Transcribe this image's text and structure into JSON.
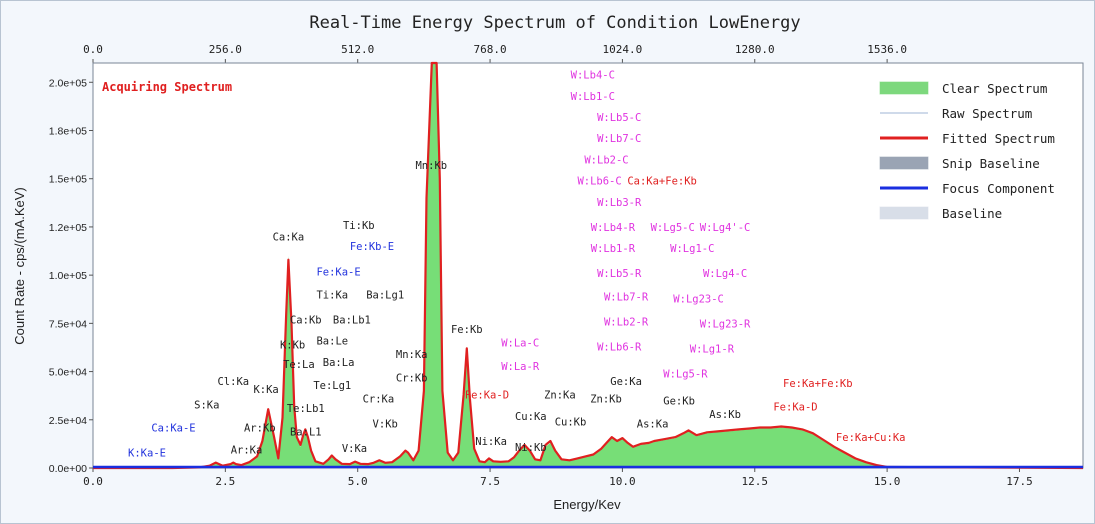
{
  "chart_data": {
    "type": "area",
    "title": "Real-Time Energy Spectrum of Condition LowEnergy",
    "xlabel": "Energy/Kev",
    "ylabel": "Count Rate - cps/(mA.KeV)",
    "xlim": [
      0,
      18.7
    ],
    "ylim": [
      0,
      210000
    ],
    "x_ticks": [
      "0.0",
      "2.5",
      "5.0",
      "7.5",
      "10.0",
      "12.5",
      "15.0",
      "17.5"
    ],
    "x_tick_values": [
      0,
      2.5,
      5,
      7.5,
      10,
      12.5,
      15,
      17.5
    ],
    "top_ticks": [
      "0.0",
      "256.0",
      "512.0",
      "768.0",
      "1024.0",
      "1280.0",
      "1536.0"
    ],
    "top_tick_values": [
      0,
      2.5,
      5,
      7.5,
      10,
      12.5,
      15
    ],
    "y_ticks": [
      "0.0e+00",
      "2.5e+04",
      "5.0e+04",
      "7.5e+04",
      "1.0e+05",
      "1.2e+05",
      "1.5e+05",
      "1.8e+05",
      "2.0e+05"
    ],
    "y_tick_values": [
      0,
      25000,
      50000,
      75000,
      100000,
      125000,
      150000,
      175000,
      200000
    ],
    "status": "Acquiring Spectrum",
    "legend_position": "top-right",
    "legend": [
      {
        "label": "Clear Spectrum",
        "kind": "fill",
        "color": "#7dd87d"
      },
      {
        "label": "Raw Spectrum",
        "kind": "thin",
        "color": "#9fb4d6"
      },
      {
        "label": "Fitted Spectrum",
        "kind": "line",
        "color": "#e02020"
      },
      {
        "label": "Snip Baseline",
        "kind": "fill",
        "color": "#9aa4b4"
      },
      {
        "label": "Focus Component",
        "kind": "line",
        "color": "#1a2ee0"
      },
      {
        "label": "Baseline",
        "kind": "fill",
        "color": "#d8dee8"
      }
    ],
    "colors": {
      "clear": "#5fd85f",
      "fitted": "#e02020",
      "focus": "#1a2ee0",
      "black_label": "#222222",
      "red_label": "#e02020",
      "blue_label": "#2233dd",
      "magenta_label": "#e033e0"
    },
    "series": [
      {
        "name": "Fitted Spectrum",
        "x": [
          0,
          1.5,
          2.0,
          2.2,
          2.32,
          2.45,
          2.6,
          2.65,
          2.7,
          2.8,
          2.95,
          3.1,
          3.2,
          3.31,
          3.42,
          3.5,
          3.58,
          3.65,
          3.69,
          3.75,
          3.8,
          3.85,
          3.92,
          3.97,
          4.01,
          4.06,
          4.12,
          4.2,
          4.35,
          4.45,
          4.51,
          4.58,
          4.7,
          4.85,
          4.95,
          5.05,
          5.2,
          5.3,
          5.41,
          5.52,
          5.65,
          5.8,
          5.9,
          5.95,
          6.05,
          6.15,
          6.25,
          6.3,
          6.4,
          6.49,
          6.55,
          6.6,
          6.7,
          6.8,
          6.9,
          7.0,
          7.06,
          7.12,
          7.2,
          7.3,
          7.4,
          7.48,
          7.56,
          7.7,
          7.85,
          7.95,
          8.05,
          8.15,
          8.25,
          8.35,
          8.45,
          8.55,
          8.64,
          8.73,
          8.85,
          9.0,
          9.15,
          9.3,
          9.45,
          9.6,
          9.7,
          9.8,
          9.9,
          10.0,
          10.1,
          10.2,
          10.35,
          10.5,
          10.6,
          10.8,
          11.0,
          11.15,
          11.25,
          11.4,
          11.6,
          11.8,
          12.0,
          12.2,
          12.4,
          12.6,
          12.8,
          13.0,
          13.2,
          13.4,
          13.6,
          13.8,
          14.0,
          14.2,
          14.4,
          14.6,
          14.8,
          15.0,
          18.7
        ],
        "y": [
          0,
          0,
          300,
          1200,
          2800,
          1200,
          2000,
          2800,
          2000,
          1500,
          3000,
          6000,
          14000,
          30500,
          16000,
          5000,
          26000,
          80000,
          108000,
          75000,
          32000,
          16000,
          12000,
          17000,
          20000,
          16000,
          9000,
          3500,
          2200,
          4500,
          6500,
          4500,
          2200,
          2000,
          3300,
          2200,
          2000,
          2700,
          4000,
          2700,
          3000,
          6000,
          9000,
          8000,
          4000,
          9000,
          40000,
          140000,
          210000,
          210000,
          150000,
          40000,
          8000,
          4000,
          8000,
          38000,
          62000,
          36000,
          10000,
          3500,
          3000,
          5000,
          3500,
          3200,
          3500,
          5500,
          9000,
          12000,
          9000,
          4500,
          4000,
          12000,
          14000,
          9000,
          4500,
          4000,
          5000,
          6000,
          7000,
          10000,
          13000,
          16000,
          14000,
          15500,
          13000,
          11000,
          12500,
          13000,
          14000,
          15000,
          16000,
          18000,
          19500,
          17000,
          18500,
          19000,
          19500,
          20000,
          20500,
          21000,
          21000,
          21500,
          21000,
          20000,
          18000,
          14500,
          11000,
          8000,
          5000,
          3000,
          1500,
          500,
          0
        ]
      },
      {
        "name": "Clear Spectrum",
        "x": [
          0,
          1.5,
          2.0,
          2.2,
          2.32,
          2.45,
          2.6,
          2.65,
          2.7,
          2.8,
          2.95,
          3.1,
          3.2,
          3.31,
          3.42,
          3.5,
          3.58,
          3.65,
          3.69,
          3.75,
          3.8,
          3.85,
          3.92,
          3.97,
          4.01,
          4.06,
          4.12,
          4.2,
          4.35,
          4.45,
          4.51,
          4.58,
          4.7,
          4.85,
          4.95,
          5.05,
          5.2,
          5.3,
          5.41,
          5.52,
          5.65,
          5.8,
          5.9,
          5.95,
          6.05,
          6.15,
          6.25,
          6.3,
          6.4,
          6.49,
          6.55,
          6.6,
          6.7,
          6.8,
          6.9,
          7.0,
          7.06,
          7.12,
          7.2,
          7.3,
          7.4,
          7.48,
          7.56,
          7.7,
          7.85,
          7.95,
          8.05,
          8.15,
          8.25,
          8.35,
          8.45,
          8.55,
          8.64,
          8.73,
          8.85,
          9.0,
          9.15,
          9.3,
          9.45,
          9.6,
          9.7,
          9.8,
          9.9,
          10.0,
          10.1,
          10.2,
          10.35,
          10.5,
          10.6,
          10.8,
          11.0,
          11.15,
          11.25,
          11.4,
          11.6,
          11.8,
          12.0,
          12.2,
          12.4,
          12.6,
          12.8,
          13.0,
          13.2,
          13.4,
          13.6,
          13.8,
          14.0,
          14.2,
          14.4,
          14.6,
          14.8,
          15.0,
          18.7
        ],
        "y": [
          0,
          0,
          300,
          1200,
          2600,
          1200,
          1900,
          2600,
          1900,
          1400,
          2800,
          5500,
          13000,
          29000,
          15000,
          4500,
          25000,
          78000,
          110000,
          73000,
          30000,
          15000,
          11000,
          16000,
          19000,
          15000,
          8500,
          3200,
          2000,
          4200,
          6000,
          4200,
          2000,
          1800,
          3000,
          2000,
          1800,
          2500,
          3700,
          2500,
          2800,
          5500,
          8500,
          7500,
          3700,
          8500,
          38000,
          138000,
          210000,
          210000,
          148000,
          38000,
          7500,
          3700,
          7500,
          36000,
          60000,
          34000,
          9500,
          3200,
          2800,
          4600,
          3200,
          3000,
          3200,
          5200,
          8500,
          11500,
          8500,
          4200,
          3700,
          11000,
          13000,
          8500,
          4200,
          3700,
          4600,
          5600,
          6600,
          9500,
          12500,
          16500,
          13500,
          15000,
          12500,
          10500,
          12000,
          12500,
          13500,
          14500,
          15500,
          17500,
          19000,
          16500,
          18000,
          18500,
          19000,
          19500,
          20000,
          20500,
          20500,
          21000,
          20500,
          19500,
          17500,
          14000,
          10500,
          7500,
          4600,
          2700,
          1300,
          400,
          0
        ]
      }
    ],
    "annotations": [
      {
        "text": "W:Lb4-C",
        "x": 9.44,
        "y": 204000,
        "color": "magenta"
      },
      {
        "text": "W:Lb1-C",
        "x": 9.44,
        "y": 193000,
        "color": "magenta"
      },
      {
        "text": "W:Lb5-C",
        "x": 9.94,
        "y": 182000,
        "color": "magenta"
      },
      {
        "text": "W:Lb7-C",
        "x": 9.94,
        "y": 171000,
        "color": "magenta"
      },
      {
        "text": "W:Lb2-C",
        "x": 9.7,
        "y": 160000,
        "color": "magenta"
      },
      {
        "text": "W:Lb6-C",
        "x": 9.57,
        "y": 149000,
        "color": "magenta"
      },
      {
        "text": "Ca:Ka+Fe:Kb",
        "x": 10.75,
        "y": 149000,
        "color": "red"
      },
      {
        "text": "W:Lb3-R",
        "x": 9.94,
        "y": 138000,
        "color": "magenta"
      },
      {
        "text": "W:Lb4-R",
        "x": 9.82,
        "y": 125000,
        "color": "magenta"
      },
      {
        "text": "W:Lg5-C",
        "x": 10.95,
        "y": 125000,
        "color": "magenta"
      },
      {
        "text": "W:Lg4'-C",
        "x": 11.94,
        "y": 125000,
        "color": "magenta"
      },
      {
        "text": "W:Lb1-R",
        "x": 9.82,
        "y": 114000,
        "color": "magenta"
      },
      {
        "text": "W:Lg1-C",
        "x": 11.32,
        "y": 114000,
        "color": "magenta"
      },
      {
        "text": "W:Lb5-R",
        "x": 9.94,
        "y": 101000,
        "color": "magenta"
      },
      {
        "text": "W:Lg4-C",
        "x": 11.94,
        "y": 101000,
        "color": "magenta"
      },
      {
        "text": "W:Lb7-R",
        "x": 10.07,
        "y": 89000,
        "color": "magenta"
      },
      {
        "text": "W:Lg23-C",
        "x": 11.44,
        "y": 88000,
        "color": "magenta"
      },
      {
        "text": "W:Lb2-R",
        "x": 10.07,
        "y": 76000,
        "color": "magenta"
      },
      {
        "text": "W:Lg23-R",
        "x": 11.94,
        "y": 75000,
        "color": "magenta"
      },
      {
        "text": "W:Lb6-R",
        "x": 9.94,
        "y": 63000,
        "color": "magenta"
      },
      {
        "text": "W:Lg1-R",
        "x": 11.69,
        "y": 62000,
        "color": "magenta"
      },
      {
        "text": "W:Lg5-R",
        "x": 11.19,
        "y": 49000,
        "color": "magenta"
      },
      {
        "text": "W:La-C",
        "x": 8.07,
        "y": 65000,
        "color": "magenta"
      },
      {
        "text": "W:La-R",
        "x": 8.07,
        "y": 53000,
        "color": "magenta"
      },
      {
        "text": "Mn:Kb",
        "x": 6.39,
        "y": 157000,
        "color": "black"
      },
      {
        "text": "Ti:Kb",
        "x": 5.02,
        "y": 126000,
        "color": "black"
      },
      {
        "text": "Ca:Ka",
        "x": 3.69,
        "y": 120000,
        "color": "black"
      },
      {
        "text": "Fe:Kb-E",
        "x": 5.27,
        "y": 115000,
        "color": "blue"
      },
      {
        "text": "Fe:Ka-E",
        "x": 4.64,
        "y": 102000,
        "color": "blue"
      },
      {
        "text": "Ti:Ka",
        "x": 4.52,
        "y": 90000,
        "color": "black"
      },
      {
        "text": "Ba:Lg1",
        "x": 5.52,
        "y": 90000,
        "color": "black"
      },
      {
        "text": "Ca:Kb",
        "x": 4.02,
        "y": 77000,
        "color": "black"
      },
      {
        "text": "Ba:Lb1",
        "x": 4.89,
        "y": 77000,
        "color": "black"
      },
      {
        "text": "Fe:Kb",
        "x": 7.06,
        "y": 72000,
        "color": "black"
      },
      {
        "text": "K:Kb",
        "x": 3.77,
        "y": 64000,
        "color": "black"
      },
      {
        "text": "Ba:Le",
        "x": 4.52,
        "y": 66000,
        "color": "black"
      },
      {
        "text": "Mn:Ka",
        "x": 6.02,
        "y": 59000,
        "color": "black"
      },
      {
        "text": "Te:La",
        "x": 3.89,
        "y": 54000,
        "color": "black"
      },
      {
        "text": "Ba:La",
        "x": 4.64,
        "y": 55000,
        "color": "black"
      },
      {
        "text": "Cr:Kb",
        "x": 6.02,
        "y": 47000,
        "color": "black"
      },
      {
        "text": "Cl:Ka",
        "x": 2.65,
        "y": 45000,
        "color": "black"
      },
      {
        "text": "Te:Lg1",
        "x": 4.52,
        "y": 43000,
        "color": "black"
      },
      {
        "text": "K:Ka",
        "x": 3.27,
        "y": 41000,
        "color": "black"
      },
      {
        "text": "Fe:Ka-D",
        "x": 7.44,
        "y": 38000,
        "color": "red"
      },
      {
        "text": "Zn:Ka",
        "x": 8.82,
        "y": 38000,
        "color": "black"
      },
      {
        "text": "Ge:Ka",
        "x": 10.07,
        "y": 45000,
        "color": "black"
      },
      {
        "text": "Fe:Ka+Fe:Kb",
        "x": 13.69,
        "y": 44000,
        "color": "red"
      },
      {
        "text": "Cr:Ka",
        "x": 5.39,
        "y": 36000,
        "color": "black"
      },
      {
        "text": "Zn:Kb",
        "x": 9.69,
        "y": 36000,
        "color": "black"
      },
      {
        "text": "Ge:Kb",
        "x": 11.07,
        "y": 35000,
        "color": "black"
      },
      {
        "text": "S:Ka",
        "x": 2.15,
        "y": 33000,
        "color": "black"
      },
      {
        "text": "Te:Lb1",
        "x": 4.02,
        "y": 31000,
        "color": "black"
      },
      {
        "text": "Fe:Ka-D",
        "x": 13.27,
        "y": 32000,
        "color": "red"
      },
      {
        "text": "Cu:Ka",
        "x": 8.27,
        "y": 27000,
        "color": "black"
      },
      {
        "text": "As:Kb",
        "x": 11.94,
        "y": 28000,
        "color": "black"
      },
      {
        "text": "V:Kb",
        "x": 5.52,
        "y": 23000,
        "color": "black"
      },
      {
        "text": "Cu:Kb",
        "x": 9.02,
        "y": 24000,
        "color": "black"
      },
      {
        "text": "As:Ka",
        "x": 10.57,
        "y": 23000,
        "color": "black"
      },
      {
        "text": "Ca:Ka-E",
        "x": 1.52,
        "y": 21000,
        "color": "blue"
      },
      {
        "text": "Ar:Kb",
        "x": 3.15,
        "y": 21000,
        "color": "black"
      },
      {
        "text": "Ba:L1",
        "x": 4.02,
        "y": 19000,
        "color": "black"
      },
      {
        "text": "Fe:Ka+Cu:Ka",
        "x": 14.69,
        "y": 16000,
        "color": "red"
      },
      {
        "text": "Ni:Ka",
        "x": 7.52,
        "y": 14000,
        "color": "black"
      },
      {
        "text": "Ni:Kb",
        "x": 8.27,
        "y": 11000,
        "color": "black"
      },
      {
        "text": "V:Ka",
        "x": 4.94,
        "y": 10500,
        "color": "black"
      },
      {
        "text": "Ar:Ka",
        "x": 2.9,
        "y": 9500,
        "color": "black"
      },
      {
        "text": "K:Ka-E",
        "x": 1.02,
        "y": 8000,
        "color": "blue"
      }
    ]
  }
}
